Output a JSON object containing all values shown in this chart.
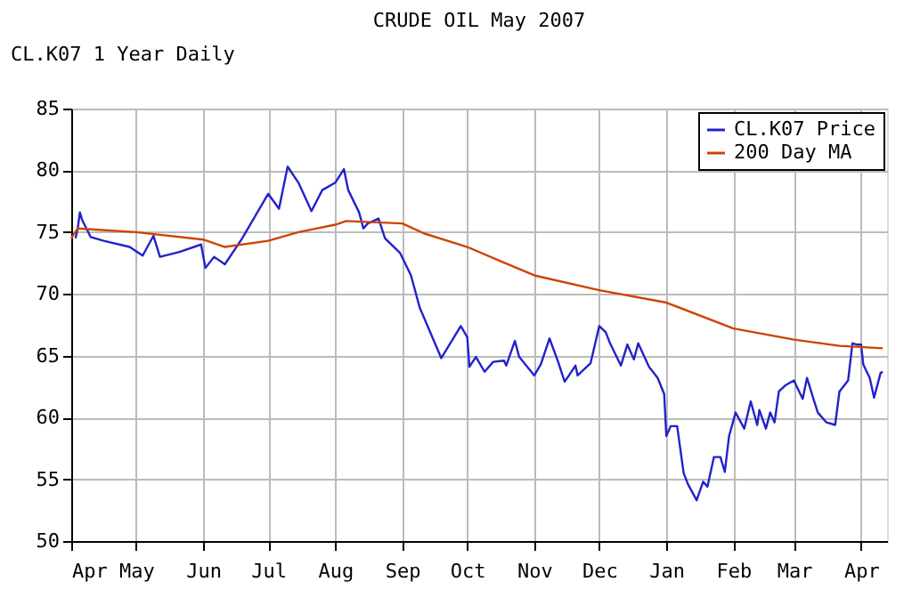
{
  "chart_data": {
    "type": "line",
    "title": "CRUDE OIL May 2007",
    "annotations": [
      "CL.K07 1 Year Daily"
    ],
    "xlim": [
      "2006-04-01",
      "2007-04-13"
    ],
    "xticks": [
      {
        "value": "2006-04-01",
        "label": "Apr"
      },
      {
        "value": "2006-05-01",
        "label": "May"
      },
      {
        "value": "2006-06-01",
        "label": "Jun"
      },
      {
        "value": "2006-07-01",
        "label": "Jul"
      },
      {
        "value": "2006-08-01",
        "label": "Aug"
      },
      {
        "value": "2006-09-01",
        "label": "Sep"
      },
      {
        "value": "2006-10-01",
        "label": "Oct"
      },
      {
        "value": "2006-11-01",
        "label": "Nov"
      },
      {
        "value": "2006-12-01",
        "label": "Dec"
      },
      {
        "value": "2007-01-01",
        "label": "Jan"
      },
      {
        "value": "2007-02-01",
        "label": "Feb"
      },
      {
        "value": "2007-03-01",
        "label": "Mar"
      },
      {
        "value": "2007-04-01",
        "label": "Apr"
      }
    ],
    "ylim": [
      50,
      85
    ],
    "yticks": [
      50,
      55,
      60,
      65,
      70,
      75,
      80,
      85
    ],
    "grid": true,
    "legend": "top right",
    "marker": "none",
    "line_style": "solid",
    "series": [
      {
        "name": "CL.K07 Price",
        "color": "#2222cc",
        "x": [
          "2006-04-03",
          "2006-04-04",
          "2006-04-05",
          "2006-04-06",
          "2006-04-10",
          "2006-04-16",
          "2006-04-28",
          "2006-05-04",
          "2006-05-09",
          "2006-05-12",
          "2006-05-21",
          "2006-05-31",
          "2006-06-02",
          "2006-06-06",
          "2006-06-11",
          "2006-06-19",
          "2006-07-01",
          "2006-07-06",
          "2006-07-10",
          "2006-07-15",
          "2006-07-21",
          "2006-07-26",
          "2006-08-01",
          "2006-08-05",
          "2006-08-07",
          "2006-08-12",
          "2006-08-14",
          "2006-08-16",
          "2006-08-21",
          "2006-08-24",
          "2006-08-31",
          "2006-09-05",
          "2006-09-09",
          "2006-09-19",
          "2006-09-28",
          "2006-10-01",
          "2006-10-02",
          "2006-10-05",
          "2006-10-09",
          "2006-10-13",
          "2006-10-18",
          "2006-10-19",
          "2006-10-23",
          "2006-10-25",
          "2006-11-01",
          "2006-11-04",
          "2006-11-08",
          "2006-11-12",
          "2006-11-15",
          "2006-11-17",
          "2006-11-20",
          "2006-11-21",
          "2006-11-27",
          "2006-12-01",
          "2006-12-04",
          "2006-12-06",
          "2006-12-11",
          "2006-12-14",
          "2006-12-17",
          "2006-12-19",
          "2006-12-24",
          "2006-12-28",
          "2006-12-31",
          "2007-01-01",
          "2007-01-03",
          "2007-01-06",
          "2007-01-09",
          "2007-01-11",
          "2007-01-15",
          "2007-01-18",
          "2007-01-20",
          "2007-01-23",
          "2007-01-26",
          "2007-01-28",
          "2007-01-30",
          "2007-02-02",
          "2007-02-06",
          "2007-02-09",
          "2007-02-12",
          "2007-02-13",
          "2007-02-16",
          "2007-02-18",
          "2007-02-20",
          "2007-02-22",
          "2007-02-25",
          "2007-03-01",
          "2007-03-02",
          "2007-03-05",
          "2007-03-07",
          "2007-03-10",
          "2007-03-12",
          "2007-03-16",
          "2007-03-20",
          "2007-03-22",
          "2007-03-26",
          "2007-03-28",
          "2007-03-30",
          "2007-04-01",
          "2007-04-02",
          "2007-04-05",
          "2007-04-07",
          "2007-04-10",
          "2007-04-11"
        ],
        "values": [
          74.5,
          75.3,
          76.6,
          76.0,
          74.6,
          74.3,
          73.8,
          73.1,
          74.7,
          73.0,
          73.4,
          74.0,
          72.1,
          73.0,
          72.4,
          74.5,
          78.1,
          76.9,
          80.3,
          79.0,
          76.7,
          78.4,
          79.0,
          80.1,
          78.4,
          76.6,
          75.3,
          75.7,
          76.1,
          74.5,
          73.3,
          71.5,
          68.9,
          64.8,
          67.4,
          66.5,
          64.1,
          64.9,
          63.7,
          64.5,
          64.6,
          64.2,
          66.2,
          64.9,
          63.4,
          64.3,
          66.4,
          64.5,
          62.9,
          63.4,
          64.2,
          63.4,
          64.4,
          67.4,
          66.9,
          66.0,
          64.2,
          65.9,
          64.7,
          66.0,
          64.1,
          63.2,
          61.9,
          58.5,
          59.3,
          59.3,
          55.5,
          54.6,
          53.3,
          54.8,
          54.4,
          56.8,
          56.8,
          55.6,
          58.5,
          60.4,
          59.1,
          61.3,
          59.4,
          60.6,
          59.1,
          60.4,
          59.6,
          62.1,
          62.6,
          63.0,
          62.6,
          61.5,
          63.2,
          61.5,
          60.4,
          59.6,
          59.4,
          62.1,
          63.0,
          66.0,
          65.9,
          65.9,
          64.3,
          63.2,
          61.6,
          63.6,
          63.7
        ]
      },
      {
        "name": "200 Day MA",
        "color": "#cc4400",
        "x": [
          "2006-04-01",
          "2006-04-04",
          "2006-05-01",
          "2006-06-01",
          "2006-06-11",
          "2006-07-01",
          "2006-07-15",
          "2006-08-01",
          "2006-08-06",
          "2006-09-01",
          "2006-09-11",
          "2006-10-01",
          "2006-10-17",
          "2006-11-01",
          "2006-12-01",
          "2007-01-01",
          "2007-02-01",
          "2007-03-01",
          "2007-03-22",
          "2007-04-11"
        ],
        "values": [
          74.5,
          75.3,
          75.0,
          74.4,
          73.8,
          74.3,
          75.0,
          75.6,
          75.9,
          75.7,
          74.9,
          73.8,
          72.6,
          71.5,
          70.3,
          69.3,
          67.2,
          66.3,
          65.8,
          65.6
        ]
      }
    ]
  }
}
